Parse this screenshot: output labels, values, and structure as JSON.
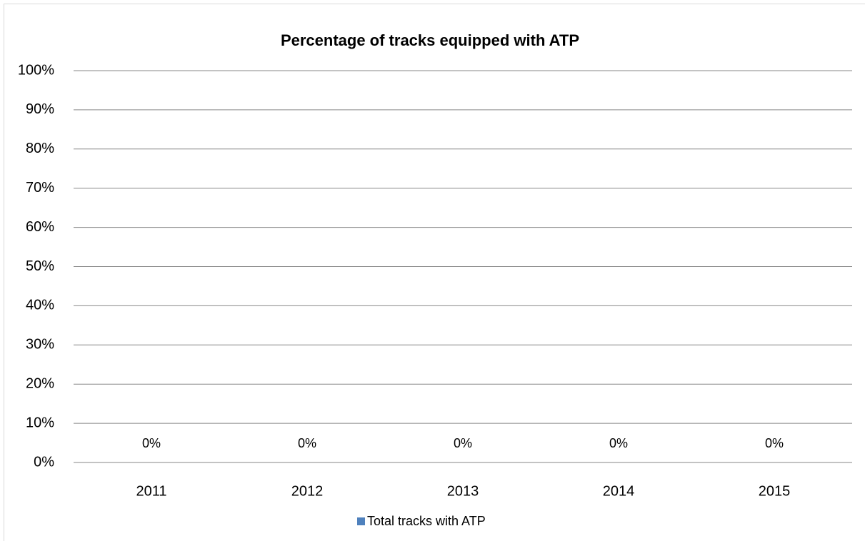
{
  "chart_data": {
    "type": "bar",
    "title": "Percentage of tracks equipped with ATP",
    "categories": [
      "2011",
      "2012",
      "2013",
      "2014",
      "2015"
    ],
    "series": [
      {
        "name": "Total tracks with ATP",
        "color": "#4f81bd",
        "values": [
          0,
          0,
          0,
          0,
          0
        ],
        "value_labels": [
          "0%",
          "0%",
          "0%",
          "0%",
          "0%"
        ]
      }
    ],
    "ylim": [
      0,
      100
    ],
    "yticks": [
      {
        "value": 0,
        "label": "0%"
      },
      {
        "value": 10,
        "label": "10%"
      },
      {
        "value": 20,
        "label": "20%"
      },
      {
        "value": 30,
        "label": "30%"
      },
      {
        "value": 40,
        "label": "40%"
      },
      {
        "value": 50,
        "label": "50%"
      },
      {
        "value": 60,
        "label": "60%"
      },
      {
        "value": 70,
        "label": "70%"
      },
      {
        "value": 80,
        "label": "80%"
      },
      {
        "value": 90,
        "label": "90%"
      },
      {
        "value": 100,
        "label": "100%"
      }
    ],
    "grid": true,
    "legend": "bottom"
  }
}
